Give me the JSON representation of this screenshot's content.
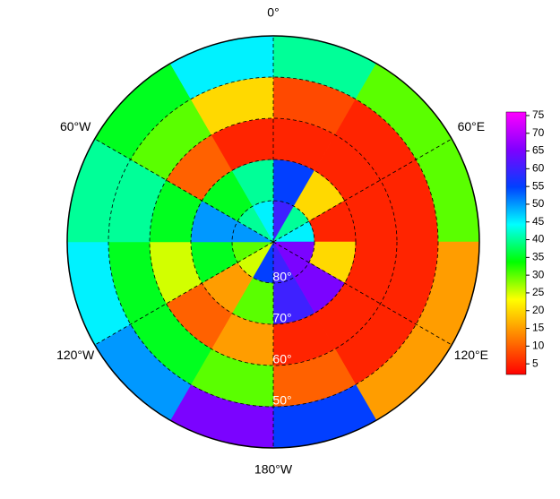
{
  "chart_data": {
    "type": "polar-heatmap",
    "rlim": [
      -90,
      -40
    ],
    "lat_edges": [
      -90,
      -80,
      -70,
      -60,
      -50,
      -40
    ],
    "lon_edges": [
      0,
      30,
      60,
      90,
      120,
      150,
      180,
      210,
      240,
      270,
      300,
      330,
      360
    ],
    "values": [
      [
        60,
        40,
        45,
        65,
        65,
        60,
        55,
        25,
        30,
        50,
        40,
        45
      ],
      [
        55,
        20,
        5,
        20,
        65,
        60,
        30,
        15,
        35,
        50,
        35,
        40
      ],
      [
        5,
        5,
        5,
        5,
        5,
        5,
        15,
        10,
        25,
        35,
        10,
        5
      ],
      [
        8,
        5,
        5,
        5,
        5,
        10,
        30,
        35,
        35,
        40,
        30,
        20
      ],
      [
        40,
        30,
        30,
        15,
        15,
        55,
        65,
        50,
        45,
        40,
        35,
        45
      ]
    ],
    "lat_ticks": [
      {
        "value": -80,
        "label": "80°"
      },
      {
        "value": -70,
        "label": "70°"
      },
      {
        "value": -60,
        "label": "60°"
      },
      {
        "value": -50,
        "label": "50°"
      }
    ],
    "lon_ticks": [
      {
        "value": 0,
        "label": "0°"
      },
      {
        "value": 60,
        "label": "60°E"
      },
      {
        "value": 120,
        "label": "120°E"
      },
      {
        "value": 180,
        "label": "180°W"
      },
      {
        "value": 240,
        "label": "120°W"
      },
      {
        "value": 300,
        "label": "60°W"
      }
    ],
    "grid": true,
    "clim": [
      2,
      76
    ],
    "cticks": [
      5,
      10,
      15,
      20,
      25,
      30,
      35,
      40,
      45,
      50,
      55,
      60,
      65,
      70,
      75
    ],
    "colors": [
      "#ff0000",
      "#ff8000",
      "#ffff00",
      "#00ff00",
      "#00ffff",
      "#0040ff",
      "#8000ff",
      "#ff00ff"
    ]
  }
}
